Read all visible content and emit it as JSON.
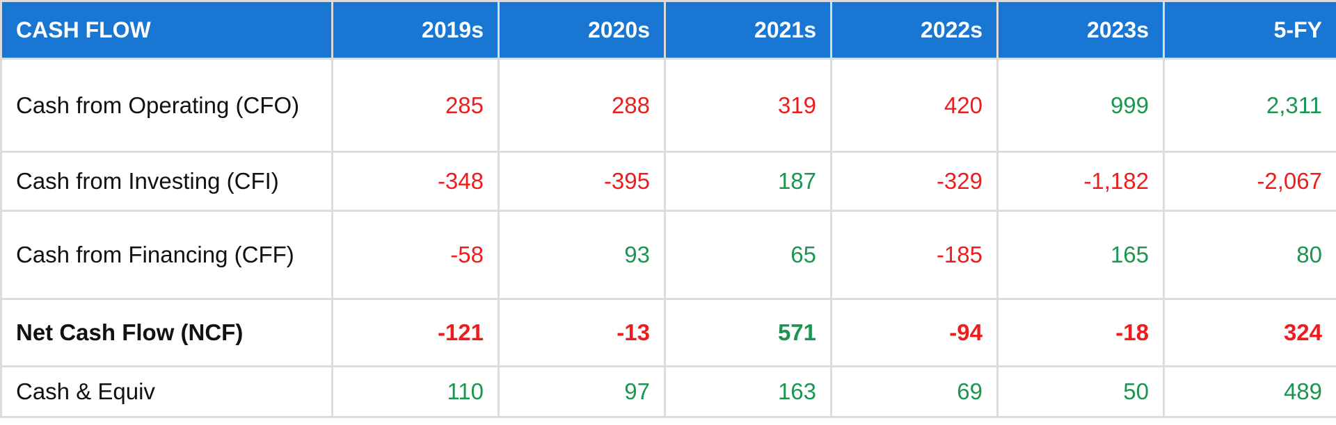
{
  "table": {
    "header": [
      "CASH FLOW",
      "2019s",
      "2020s",
      "2021s",
      "2022s",
      "2023s",
      "5-FY"
    ],
    "rows": [
      {
        "label": "Cash from Operating (CFO)",
        "values": [
          "285",
          "288",
          "319",
          "420",
          "999",
          "2,311"
        ],
        "colors": [
          "#ee1c1c",
          "#ee1c1c",
          "#ee1c1c",
          "#ee1c1c",
          "#1a9650",
          "#1a9650"
        ]
      },
      {
        "label": "Cash from Investing (CFI)",
        "values": [
          "-348",
          "-395",
          "187",
          "-329",
          "-1,182",
          "-2,067"
        ],
        "colors": [
          "#ee1c1c",
          "#ee1c1c",
          "#1a9650",
          "#ee1c1c",
          "#ee1c1c",
          "#ee1c1c"
        ]
      },
      {
        "label": "Cash from Financing (CFF)",
        "values": [
          "-58",
          "93",
          "65",
          "-185",
          "165",
          "80"
        ],
        "colors": [
          "#ee1c1c",
          "#1a9650",
          "#1a9650",
          "#ee1c1c",
          "#1a9650",
          "#1a9650"
        ]
      },
      {
        "label": "Net Cash Flow (NCF)",
        "values": [
          "-121",
          "-13",
          "571",
          "-94",
          "-18",
          "324"
        ],
        "colors": [
          "#ee1c1c",
          "#ee1c1c",
          "#1a9650",
          "#ee1c1c",
          "#ee1c1c",
          "#ee1c1c"
        ]
      },
      {
        "label": "Cash & Equiv",
        "values": [
          "110",
          "97",
          "163",
          "69",
          "50",
          "489"
        ],
        "colors": [
          "#1a9650",
          "#1a9650",
          "#1a9650",
          "#1a9650",
          "#1a9650",
          "#1a9650"
        ]
      }
    ]
  }
}
